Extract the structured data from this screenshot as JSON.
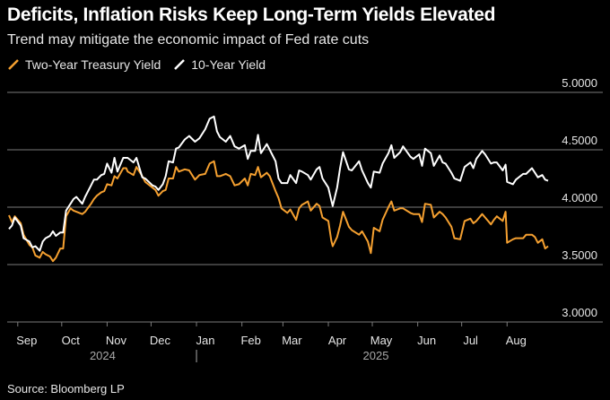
{
  "header": {
    "title": "Deficits, Inflation Risks Keep Long-Term Yields Elevated",
    "subtitle": "Trend may mitigate the economic impact of Fed rate cuts"
  },
  "footer": {
    "source": "Source: Bloomberg LP"
  },
  "colors": {
    "two_year": "#f5a030",
    "ten_year": "#ffffff",
    "grid": "#7a7a7a",
    "background": "#000000"
  },
  "chart_data": {
    "type": "line",
    "title": "Deficits, Inflation Risks Keep Long-Term Yields Elevated",
    "subtitle": "Trend may mitigate the economic impact of Fed rate cuts",
    "legend_position": "top-left",
    "grid": "horizontal",
    "ylim": [
      3.0,
      5.0
    ],
    "y_ticks": [
      "5.0000",
      "4.5000",
      "4.0000",
      "3.5000",
      "3.0000"
    ],
    "x_ticks": [
      "Sep",
      "Oct",
      "Nov",
      "Dec",
      "Jan",
      "Feb",
      "Mar",
      "Apr",
      "May",
      "Jun",
      "Jul",
      "Aug"
    ],
    "x_years": [
      "2024",
      "2025"
    ],
    "x_range": [
      "2024-08-26",
      "2025-08-29"
    ],
    "series": [
      {
        "name": "Two-Year Treasury Yield",
        "color": "#f5a030",
        "points": [
          [
            "2024-08-26",
            3.93
          ],
          [
            "2024-08-28",
            3.87
          ],
          [
            "2024-08-30",
            3.92
          ],
          [
            "2024-09-03",
            3.86
          ],
          [
            "2024-09-05",
            3.76
          ],
          [
            "2024-09-09",
            3.67
          ],
          [
            "2024-09-11",
            3.65
          ],
          [
            "2024-09-13",
            3.58
          ],
          [
            "2024-09-16",
            3.56
          ],
          [
            "2024-09-18",
            3.61
          ],
          [
            "2024-09-20",
            3.59
          ],
          [
            "2024-09-23",
            3.57
          ],
          [
            "2024-09-25",
            3.53
          ],
          [
            "2024-09-27",
            3.56
          ],
          [
            "2024-09-30",
            3.64
          ],
          [
            "2024-10-02",
            3.64
          ],
          [
            "2024-10-04",
            3.92
          ],
          [
            "2024-10-07",
            3.99
          ],
          [
            "2024-10-09",
            3.97
          ],
          [
            "2024-10-11",
            3.96
          ],
          [
            "2024-10-15",
            3.94
          ],
          [
            "2024-10-17",
            3.96
          ],
          [
            "2024-10-21",
            4.03
          ],
          [
            "2024-10-23",
            4.07
          ],
          [
            "2024-10-25",
            4.1
          ],
          [
            "2024-10-28",
            4.13
          ],
          [
            "2024-10-30",
            4.14
          ],
          [
            "2024-11-01",
            4.2
          ],
          [
            "2024-11-04",
            4.19
          ],
          [
            "2024-11-06",
            4.27
          ],
          [
            "2024-11-08",
            4.25
          ],
          [
            "2024-11-12",
            4.34
          ],
          [
            "2024-11-14",
            4.34
          ],
          [
            "2024-11-15",
            4.31
          ],
          [
            "2024-11-19",
            4.28
          ],
          [
            "2024-11-21",
            4.35
          ],
          [
            "2024-11-25",
            4.27
          ],
          [
            "2024-11-27",
            4.22
          ],
          [
            "2024-12-02",
            4.17
          ],
          [
            "2024-12-04",
            4.15
          ],
          [
            "2024-12-06",
            4.1
          ],
          [
            "2024-12-09",
            4.14
          ],
          [
            "2024-12-11",
            4.15
          ],
          [
            "2024-12-13",
            4.25
          ],
          [
            "2024-12-16",
            4.25
          ],
          [
            "2024-12-18",
            4.35
          ],
          [
            "2024-12-20",
            4.31
          ],
          [
            "2024-12-24",
            4.33
          ],
          [
            "2024-12-27",
            4.32
          ],
          [
            "2024-12-31",
            4.24
          ],
          [
            "2025-01-03",
            4.28
          ],
          [
            "2025-01-07",
            4.29
          ],
          [
            "2025-01-10",
            4.38
          ],
          [
            "2025-01-13",
            4.4
          ],
          [
            "2025-01-15",
            4.27
          ],
          [
            "2025-01-17",
            4.27
          ],
          [
            "2025-01-21",
            4.29
          ],
          [
            "2025-01-24",
            4.27
          ],
          [
            "2025-01-27",
            4.19
          ],
          [
            "2025-01-30",
            4.2
          ],
          [
            "2025-02-03",
            4.25
          ],
          [
            "2025-02-05",
            4.19
          ],
          [
            "2025-02-07",
            4.29
          ],
          [
            "2025-02-10",
            4.28
          ],
          [
            "2025-02-12",
            4.35
          ],
          [
            "2025-02-14",
            4.26
          ],
          [
            "2025-02-18",
            4.3
          ],
          [
            "2025-02-20",
            4.27
          ],
          [
            "2025-02-24",
            4.14
          ],
          [
            "2025-02-26",
            4.08
          ],
          [
            "2025-02-28",
            3.99
          ],
          [
            "2025-03-04",
            3.95
          ],
          [
            "2025-03-06",
            3.98
          ],
          [
            "2025-03-10",
            3.89
          ],
          [
            "2025-03-12",
            3.99
          ],
          [
            "2025-03-14",
            4.02
          ],
          [
            "2025-03-18",
            4.05
          ],
          [
            "2025-03-20",
            3.97
          ],
          [
            "2025-03-24",
            4.03
          ],
          [
            "2025-03-26",
            4.01
          ],
          [
            "2025-03-28",
            3.91
          ],
          [
            "2025-04-01",
            3.88
          ],
          [
            "2025-04-03",
            3.71
          ],
          [
            "2025-04-04",
            3.66
          ],
          [
            "2025-04-07",
            3.74
          ],
          [
            "2025-04-09",
            3.84
          ],
          [
            "2025-04-11",
            3.96
          ],
          [
            "2025-04-15",
            3.83
          ],
          [
            "2025-04-17",
            3.8
          ],
          [
            "2025-04-22",
            3.76
          ],
          [
            "2025-04-24",
            3.79
          ],
          [
            "2025-04-28",
            3.7
          ],
          [
            "2025-04-30",
            3.6
          ],
          [
            "2025-05-02",
            3.82
          ],
          [
            "2025-05-06",
            3.79
          ],
          [
            "2025-05-08",
            3.89
          ],
          [
            "2025-05-12",
            4.0
          ],
          [
            "2025-05-14",
            4.05
          ],
          [
            "2025-05-16",
            3.97
          ],
          [
            "2025-05-20",
            3.99
          ],
          [
            "2025-05-22",
            3.99
          ],
          [
            "2025-05-27",
            3.95
          ],
          [
            "2025-05-29",
            3.94
          ],
          [
            "2025-06-02",
            3.94
          ],
          [
            "2025-06-04",
            3.87
          ],
          [
            "2025-06-06",
            4.03
          ],
          [
            "2025-06-10",
            4.02
          ],
          [
            "2025-06-12",
            3.91
          ],
          [
            "2025-06-16",
            3.96
          ],
          [
            "2025-06-18",
            3.94
          ],
          [
            "2025-06-20",
            3.91
          ],
          [
            "2025-06-24",
            3.83
          ],
          [
            "2025-06-26",
            3.73
          ],
          [
            "2025-06-30",
            3.72
          ],
          [
            "2025-07-03",
            3.88
          ],
          [
            "2025-07-07",
            3.9
          ],
          [
            "2025-07-09",
            3.86
          ],
          [
            "2025-07-11",
            3.88
          ],
          [
            "2025-07-15",
            3.94
          ],
          [
            "2025-07-17",
            3.91
          ],
          [
            "2025-07-21",
            3.85
          ],
          [
            "2025-07-23",
            3.89
          ],
          [
            "2025-07-25",
            3.92
          ],
          [
            "2025-07-29",
            3.88
          ],
          [
            "2025-07-31",
            3.96
          ],
          [
            "2025-08-01",
            3.69
          ],
          [
            "2025-08-05",
            3.72
          ],
          [
            "2025-08-07",
            3.73
          ],
          [
            "2025-08-12",
            3.73
          ],
          [
            "2025-08-14",
            3.76
          ],
          [
            "2025-08-18",
            3.76
          ],
          [
            "2025-08-20",
            3.74
          ],
          [
            "2025-08-22",
            3.69
          ],
          [
            "2025-08-25",
            3.72
          ],
          [
            "2025-08-27",
            3.64
          ],
          [
            "2025-08-29",
            3.66
          ]
        ]
      },
      {
        "name": "10-Year Yield",
        "color": "#ffffff",
        "points": [
          [
            "2024-08-26",
            3.81
          ],
          [
            "2024-08-28",
            3.84
          ],
          [
            "2024-08-30",
            3.91
          ],
          [
            "2024-09-03",
            3.84
          ],
          [
            "2024-09-05",
            3.73
          ],
          [
            "2024-09-09",
            3.7
          ],
          [
            "2024-09-11",
            3.65
          ],
          [
            "2024-09-13",
            3.66
          ],
          [
            "2024-09-16",
            3.62
          ],
          [
            "2024-09-18",
            3.7
          ],
          [
            "2024-09-20",
            3.73
          ],
          [
            "2024-09-23",
            3.75
          ],
          [
            "2024-09-25",
            3.79
          ],
          [
            "2024-09-27",
            3.75
          ],
          [
            "2024-09-30",
            3.78
          ],
          [
            "2024-10-02",
            3.78
          ],
          [
            "2024-10-04",
            3.97
          ],
          [
            "2024-10-07",
            4.03
          ],
          [
            "2024-10-09",
            4.07
          ],
          [
            "2024-10-11",
            4.09
          ],
          [
            "2024-10-15",
            4.03
          ],
          [
            "2024-10-17",
            4.09
          ],
          [
            "2024-10-21",
            4.19
          ],
          [
            "2024-10-23",
            4.24
          ],
          [
            "2024-10-25",
            4.24
          ],
          [
            "2024-10-28",
            4.28
          ],
          [
            "2024-10-30",
            4.29
          ],
          [
            "2024-11-01",
            4.38
          ],
          [
            "2024-11-04",
            4.3
          ],
          [
            "2024-11-06",
            4.43
          ],
          [
            "2024-11-08",
            4.31
          ],
          [
            "2024-11-12",
            4.43
          ],
          [
            "2024-11-14",
            4.43
          ],
          [
            "2024-11-15",
            4.43
          ],
          [
            "2024-11-19",
            4.39
          ],
          [
            "2024-11-21",
            4.43
          ],
          [
            "2024-11-25",
            4.26
          ],
          [
            "2024-11-27",
            4.25
          ],
          [
            "2024-12-02",
            4.19
          ],
          [
            "2024-12-04",
            4.18
          ],
          [
            "2024-12-06",
            4.15
          ],
          [
            "2024-12-09",
            4.2
          ],
          [
            "2024-12-11",
            4.27
          ],
          [
            "2024-12-13",
            4.4
          ],
          [
            "2024-12-16",
            4.39
          ],
          [
            "2024-12-18",
            4.51
          ],
          [
            "2024-12-20",
            4.52
          ],
          [
            "2024-12-24",
            4.59
          ],
          [
            "2024-12-27",
            4.62
          ],
          [
            "2024-12-31",
            4.57
          ],
          [
            "2025-01-03",
            4.6
          ],
          [
            "2025-01-07",
            4.68
          ],
          [
            "2025-01-10",
            4.77
          ],
          [
            "2025-01-13",
            4.79
          ],
          [
            "2025-01-15",
            4.66
          ],
          [
            "2025-01-17",
            4.61
          ],
          [
            "2025-01-21",
            4.57
          ],
          [
            "2025-01-24",
            4.62
          ],
          [
            "2025-01-27",
            4.53
          ],
          [
            "2025-01-30",
            4.51
          ],
          [
            "2025-02-03",
            4.54
          ],
          [
            "2025-02-05",
            4.42
          ],
          [
            "2025-02-07",
            4.49
          ],
          [
            "2025-02-10",
            4.49
          ],
          [
            "2025-02-12",
            4.63
          ],
          [
            "2025-02-14",
            4.47
          ],
          [
            "2025-02-18",
            4.55
          ],
          [
            "2025-02-20",
            4.5
          ],
          [
            "2025-02-24",
            4.4
          ],
          [
            "2025-02-26",
            4.25
          ],
          [
            "2025-02-28",
            4.21
          ],
          [
            "2025-03-04",
            4.21
          ],
          [
            "2025-03-06",
            4.28
          ],
          [
            "2025-03-10",
            4.21
          ],
          [
            "2025-03-12",
            4.32
          ],
          [
            "2025-03-14",
            4.31
          ],
          [
            "2025-03-18",
            4.28
          ],
          [
            "2025-03-20",
            4.24
          ],
          [
            "2025-03-24",
            4.33
          ],
          [
            "2025-03-26",
            4.35
          ],
          [
            "2025-03-28",
            4.25
          ],
          [
            "2025-04-01",
            4.17
          ],
          [
            "2025-04-03",
            4.06
          ],
          [
            "2025-04-04",
            4.01
          ],
          [
            "2025-04-07",
            4.17
          ],
          [
            "2025-04-09",
            4.34
          ],
          [
            "2025-04-11",
            4.48
          ],
          [
            "2025-04-15",
            4.33
          ],
          [
            "2025-04-17",
            4.32
          ],
          [
            "2025-04-22",
            4.4
          ],
          [
            "2025-04-24",
            4.32
          ],
          [
            "2025-04-28",
            4.21
          ],
          [
            "2025-04-30",
            4.17
          ],
          [
            "2025-05-02",
            4.31
          ],
          [
            "2025-05-06",
            4.3
          ],
          [
            "2025-05-08",
            4.38
          ],
          [
            "2025-05-12",
            4.47
          ],
          [
            "2025-05-14",
            4.54
          ],
          [
            "2025-05-16",
            4.43
          ],
          [
            "2025-05-20",
            4.48
          ],
          [
            "2025-05-22",
            4.53
          ],
          [
            "2025-05-27",
            4.44
          ],
          [
            "2025-05-29",
            4.42
          ],
          [
            "2025-06-02",
            4.46
          ],
          [
            "2025-06-04",
            4.36
          ],
          [
            "2025-06-06",
            4.51
          ],
          [
            "2025-06-10",
            4.47
          ],
          [
            "2025-06-12",
            4.36
          ],
          [
            "2025-06-16",
            4.45
          ],
          [
            "2025-06-18",
            4.39
          ],
          [
            "2025-06-20",
            4.38
          ],
          [
            "2025-06-24",
            4.3
          ],
          [
            "2025-06-26",
            4.25
          ],
          [
            "2025-06-30",
            4.23
          ],
          [
            "2025-07-03",
            4.35
          ],
          [
            "2025-07-07",
            4.39
          ],
          [
            "2025-07-09",
            4.34
          ],
          [
            "2025-07-11",
            4.42
          ],
          [
            "2025-07-15",
            4.49
          ],
          [
            "2025-07-17",
            4.46
          ],
          [
            "2025-07-21",
            4.38
          ],
          [
            "2025-07-23",
            4.39
          ],
          [
            "2025-07-25",
            4.39
          ],
          [
            "2025-07-29",
            4.32
          ],
          [
            "2025-07-31",
            4.37
          ],
          [
            "2025-08-01",
            4.22
          ],
          [
            "2025-08-05",
            4.2
          ],
          [
            "2025-08-07",
            4.24
          ],
          [
            "2025-08-12",
            4.29
          ],
          [
            "2025-08-14",
            4.29
          ],
          [
            "2025-08-18",
            4.34
          ],
          [
            "2025-08-20",
            4.3
          ],
          [
            "2025-08-22",
            4.26
          ],
          [
            "2025-08-25",
            4.28
          ],
          [
            "2025-08-27",
            4.24
          ],
          [
            "2025-08-29",
            4.23
          ]
        ]
      }
    ]
  }
}
